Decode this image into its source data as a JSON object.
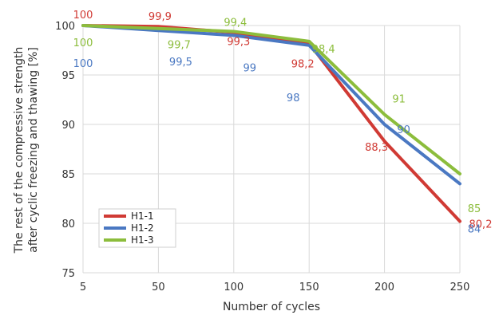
{
  "chart_data": {
    "type": "line",
    "xlabel": "Number of cycles",
    "ylabel_lines": [
      "The rest of the compressive strength",
      "after cyclic freezing and thawing [%]"
    ],
    "x_ticks": [
      "5",
      "50",
      "100",
      "150",
      "200",
      "250"
    ],
    "y_ticks": [
      "75",
      "80",
      "85",
      "90",
      "95",
      "100"
    ],
    "ylim": [
      75,
      100
    ],
    "grid": true,
    "legend_position": "bottom-left",
    "series": [
      {
        "name": "H1-1",
        "color": "#d03a34",
        "points": [
          {
            "x": "5",
            "y": 100,
            "label": "100"
          },
          {
            "x": "50",
            "y": 99.9,
            "label": "99,9"
          },
          {
            "x": "100",
            "y": 99.3,
            "label": "99,3"
          },
          {
            "x": "150",
            "y": 98.2,
            "label": "98,2"
          },
          {
            "x": "200",
            "y": 88.3,
            "label": "88,3"
          },
          {
            "x": "250",
            "y": 80.2,
            "label": "80,2"
          }
        ]
      },
      {
        "name": "H1-2",
        "color": "#4a78c2",
        "points": [
          {
            "x": "5",
            "y": 100,
            "label": "100"
          },
          {
            "x": "50",
            "y": 99.5,
            "label": "99,5"
          },
          {
            "x": "100",
            "y": 99,
            "label": "99"
          },
          {
            "x": "150",
            "y": 98,
            "label": "98"
          },
          {
            "x": "200",
            "y": 90,
            "label": "90"
          },
          {
            "x": "250",
            "y": 84,
            "label": "84"
          }
        ]
      },
      {
        "name": "H1-3",
        "color": "#8cbd3c",
        "points": [
          {
            "x": "5",
            "y": 100,
            "label": "100"
          },
          {
            "x": "50",
            "y": 99.7,
            "label": "99,7"
          },
          {
            "x": "100",
            "y": 99.4,
            "label": "99,4"
          },
          {
            "x": "150",
            "y": 98.4,
            "label": "98,4"
          },
          {
            "x": "200",
            "y": 91,
            "label": "91"
          },
          {
            "x": "250",
            "y": 85,
            "label": "85"
          }
        ]
      }
    ]
  }
}
